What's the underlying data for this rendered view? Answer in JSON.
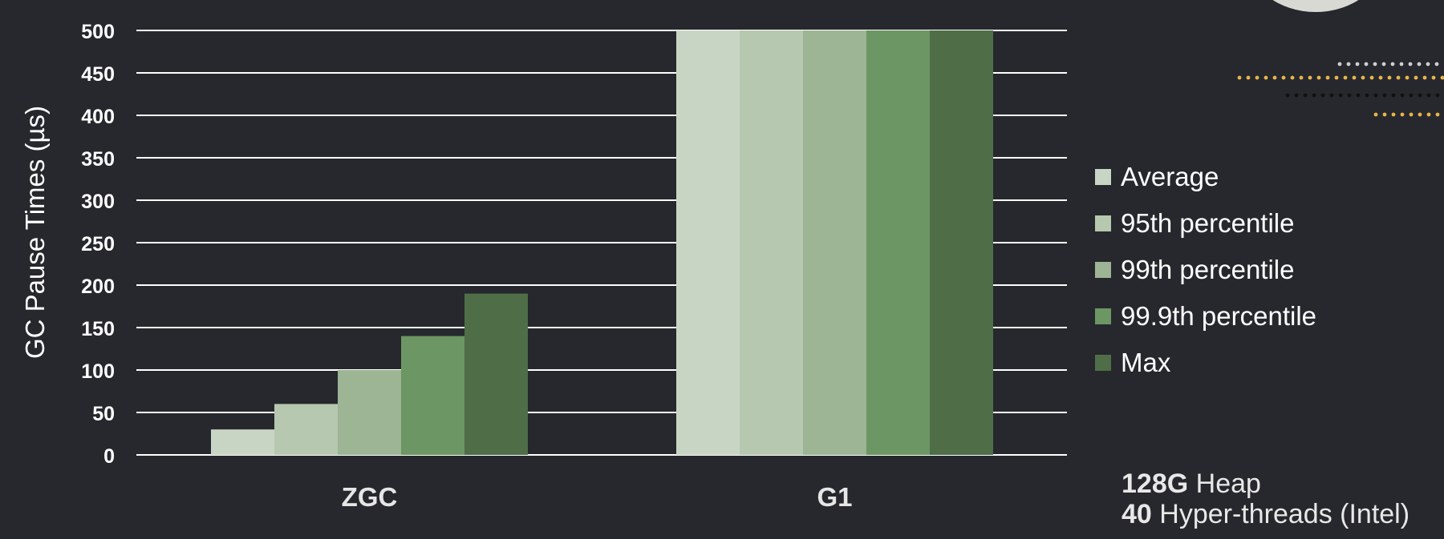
{
  "chart_data": {
    "type": "bar",
    "title": "",
    "xlabel": "",
    "ylabel": "GC Pause Times (µs)",
    "categories": [
      "ZGC",
      "G1"
    ],
    "series": [
      {
        "name": "Average",
        "values": [
          30,
          500
        ],
        "color": "#c9d5c4"
      },
      {
        "name": "95th percentile",
        "values": [
          60,
          500
        ],
        "color": "#b6c8af"
      },
      {
        "name": "99th percentile",
        "values": [
          100,
          500
        ],
        "color": "#9db594"
      },
      {
        "name": "99.9th percentile",
        "values": [
          140,
          500
        ],
        "color": "#6c9663"
      },
      {
        "name": "Max",
        "values": [
          190,
          500
        ],
        "color": "#4f6e48"
      }
    ],
    "ylim": [
      0,
      500
    ],
    "yticks": [
      0,
      50,
      100,
      150,
      200,
      250,
      300,
      350,
      400,
      450,
      500
    ],
    "grid": true,
    "legend_position": "right"
  },
  "notes": {
    "heap_value": "128G",
    "heap_label": " Heap",
    "threads_value": "40",
    "threads_label": " Hyper-threads (Intel)"
  },
  "colors": {
    "background": "#26282d",
    "grid": "#ffffff",
    "accent_dots": "#e8b54a"
  }
}
